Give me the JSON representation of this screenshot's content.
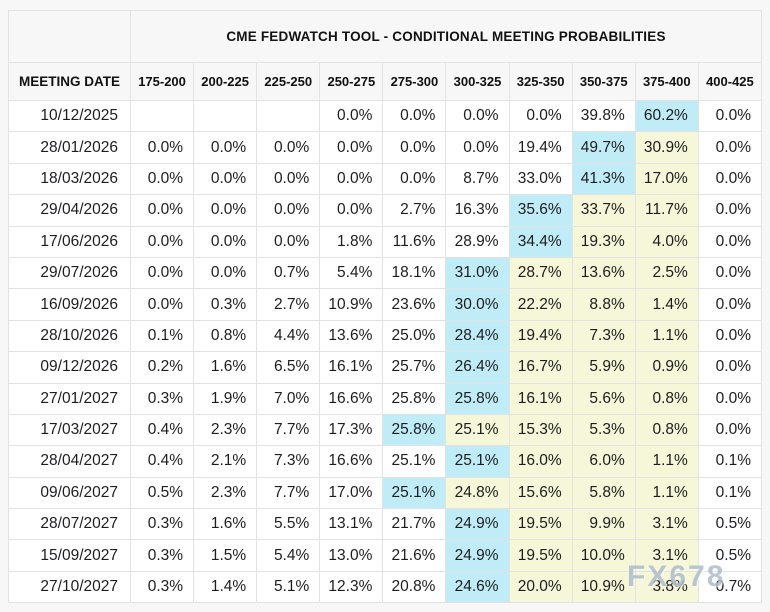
{
  "table": {
    "title": "CME FEDWATCH TOOL - CONDITIONAL MEETING PROBABILITIES",
    "row_header": "MEETING DATE",
    "columns": [
      "175-200",
      "200-225",
      "225-250",
      "250-275",
      "275-300",
      "300-325",
      "325-350",
      "350-375",
      "375-400",
      "400-425"
    ],
    "rows": [
      {
        "date": "10/12/2025",
        "values": [
          "",
          "",
          "",
          "0.0%",
          "0.0%",
          "0.0%",
          "0.0%",
          "39.8%",
          "60.2%",
          "0.0%"
        ],
        "highlights": [
          "",
          "",
          "",
          "",
          "",
          "",
          "",
          "",
          "cyan",
          ""
        ]
      },
      {
        "date": "28/01/2026",
        "values": [
          "0.0%",
          "0.0%",
          "0.0%",
          "0.0%",
          "0.0%",
          "0.0%",
          "19.4%",
          "49.7%",
          "30.9%",
          "0.0%"
        ],
        "highlights": [
          "",
          "",
          "",
          "",
          "",
          "",
          "",
          "cyan",
          "yellow",
          ""
        ]
      },
      {
        "date": "18/03/2026",
        "values": [
          "0.0%",
          "0.0%",
          "0.0%",
          "0.0%",
          "0.0%",
          "8.7%",
          "33.0%",
          "41.3%",
          "17.0%",
          "0.0%"
        ],
        "highlights": [
          "",
          "",
          "",
          "",
          "",
          "",
          "",
          "cyan",
          "yellow",
          ""
        ]
      },
      {
        "date": "29/04/2026",
        "values": [
          "0.0%",
          "0.0%",
          "0.0%",
          "0.0%",
          "2.7%",
          "16.3%",
          "35.6%",
          "33.7%",
          "11.7%",
          "0.0%"
        ],
        "highlights": [
          "",
          "",
          "",
          "",
          "",
          "",
          "cyan",
          "yellow",
          "yellow",
          ""
        ]
      },
      {
        "date": "17/06/2026",
        "values": [
          "0.0%",
          "0.0%",
          "0.0%",
          "1.8%",
          "11.6%",
          "28.9%",
          "34.4%",
          "19.3%",
          "4.0%",
          "0.0%"
        ],
        "highlights": [
          "",
          "",
          "",
          "",
          "",
          "",
          "cyan",
          "yellow",
          "yellow",
          ""
        ]
      },
      {
        "date": "29/07/2026",
        "values": [
          "0.0%",
          "0.0%",
          "0.7%",
          "5.4%",
          "18.1%",
          "31.0%",
          "28.7%",
          "13.6%",
          "2.5%",
          "0.0%"
        ],
        "highlights": [
          "",
          "",
          "",
          "",
          "",
          "cyan",
          "yellow",
          "yellow",
          "yellow",
          ""
        ]
      },
      {
        "date": "16/09/2026",
        "values": [
          "0.0%",
          "0.3%",
          "2.7%",
          "10.9%",
          "23.6%",
          "30.0%",
          "22.2%",
          "8.8%",
          "1.4%",
          "0.0%"
        ],
        "highlights": [
          "",
          "",
          "",
          "",
          "",
          "cyan",
          "yellow",
          "yellow",
          "yellow",
          ""
        ]
      },
      {
        "date": "28/10/2026",
        "values": [
          "0.1%",
          "0.8%",
          "4.4%",
          "13.6%",
          "25.0%",
          "28.4%",
          "19.4%",
          "7.3%",
          "1.1%",
          "0.0%"
        ],
        "highlights": [
          "",
          "",
          "",
          "",
          "",
          "cyan",
          "yellow",
          "yellow",
          "yellow",
          ""
        ]
      },
      {
        "date": "09/12/2026",
        "values": [
          "0.2%",
          "1.6%",
          "6.5%",
          "16.1%",
          "25.7%",
          "26.4%",
          "16.7%",
          "5.9%",
          "0.9%",
          "0.0%"
        ],
        "highlights": [
          "",
          "",
          "",
          "",
          "",
          "cyan",
          "yellow",
          "yellow",
          "yellow",
          ""
        ]
      },
      {
        "date": "27/01/2027",
        "values": [
          "0.3%",
          "1.9%",
          "7.0%",
          "16.6%",
          "25.8%",
          "25.8%",
          "16.1%",
          "5.6%",
          "0.8%",
          "0.0%"
        ],
        "highlights": [
          "",
          "",
          "",
          "",
          "",
          "cyan",
          "yellow",
          "yellow",
          "yellow",
          ""
        ]
      },
      {
        "date": "17/03/2027",
        "values": [
          "0.4%",
          "2.3%",
          "7.7%",
          "17.3%",
          "25.8%",
          "25.1%",
          "15.3%",
          "5.3%",
          "0.8%",
          "0.0%"
        ],
        "highlights": [
          "",
          "",
          "",
          "",
          "cyan",
          "yellow",
          "yellow",
          "yellow",
          "yellow",
          ""
        ]
      },
      {
        "date": "28/04/2027",
        "values": [
          "0.4%",
          "2.1%",
          "7.3%",
          "16.6%",
          "25.1%",
          "25.1%",
          "16.0%",
          "6.0%",
          "1.1%",
          "0.1%"
        ],
        "highlights": [
          "",
          "",
          "",
          "",
          "",
          "cyan",
          "yellow",
          "yellow",
          "yellow",
          ""
        ]
      },
      {
        "date": "09/06/2027",
        "values": [
          "0.5%",
          "2.3%",
          "7.7%",
          "17.0%",
          "25.1%",
          "24.8%",
          "15.6%",
          "5.8%",
          "1.1%",
          "0.1%"
        ],
        "highlights": [
          "",
          "",
          "",
          "",
          "cyan",
          "yellow",
          "yellow",
          "yellow",
          "yellow",
          ""
        ]
      },
      {
        "date": "28/07/2027",
        "values": [
          "0.3%",
          "1.6%",
          "5.5%",
          "13.1%",
          "21.7%",
          "24.9%",
          "19.5%",
          "9.9%",
          "3.1%",
          "0.5%"
        ],
        "highlights": [
          "",
          "",
          "",
          "",
          "",
          "cyan",
          "yellow",
          "yellow",
          "yellow",
          ""
        ]
      },
      {
        "date": "15/09/2027",
        "values": [
          "0.3%",
          "1.5%",
          "5.4%",
          "13.0%",
          "21.6%",
          "24.9%",
          "19.5%",
          "10.0%",
          "3.1%",
          "0.5%"
        ],
        "highlights": [
          "",
          "",
          "",
          "",
          "",
          "cyan",
          "yellow",
          "yellow",
          "yellow",
          ""
        ]
      },
      {
        "date": "27/10/2027",
        "values": [
          "0.3%",
          "1.4%",
          "5.1%",
          "12.3%",
          "20.8%",
          "24.6%",
          "20.0%",
          "10.9%",
          "3.8%",
          "0.7%"
        ],
        "highlights": [
          "",
          "",
          "",
          "",
          "",
          "cyan",
          "yellow",
          "yellow",
          "yellow",
          ""
        ]
      }
    ],
    "colors": {
      "cyan": "#bfecf7",
      "yellow": "#f6f6d8",
      "border": "#e2e2e2",
      "page_bg": "#f7f7f7",
      "text": "#1d1d1f"
    }
  },
  "watermark": {
    "text": "FX678",
    "color": "#aebdc9"
  },
  "chart_data": {
    "type": "table",
    "title": "CME FEDWATCH TOOL - CONDITIONAL MEETING PROBABILITIES",
    "row_label": "MEETING DATE",
    "columns_bps": [
      "175-200",
      "200-225",
      "225-250",
      "250-275",
      "275-300",
      "300-325",
      "325-350",
      "350-375",
      "375-400",
      "400-425"
    ],
    "rows": [
      {
        "date": "10/12/2025",
        "probabilities_pct": [
          null,
          null,
          null,
          0.0,
          0.0,
          0.0,
          0.0,
          39.8,
          60.2,
          0.0
        ]
      },
      {
        "date": "28/01/2026",
        "probabilities_pct": [
          0.0,
          0.0,
          0.0,
          0.0,
          0.0,
          0.0,
          19.4,
          49.7,
          30.9,
          0.0
        ]
      },
      {
        "date": "18/03/2026",
        "probabilities_pct": [
          0.0,
          0.0,
          0.0,
          0.0,
          0.0,
          8.7,
          33.0,
          41.3,
          17.0,
          0.0
        ]
      },
      {
        "date": "29/04/2026",
        "probabilities_pct": [
          0.0,
          0.0,
          0.0,
          0.0,
          2.7,
          16.3,
          35.6,
          33.7,
          11.7,
          0.0
        ]
      },
      {
        "date": "17/06/2026",
        "probabilities_pct": [
          0.0,
          0.0,
          0.0,
          1.8,
          11.6,
          28.9,
          34.4,
          19.3,
          4.0,
          0.0
        ]
      },
      {
        "date": "29/07/2026",
        "probabilities_pct": [
          0.0,
          0.0,
          0.7,
          5.4,
          18.1,
          31.0,
          28.7,
          13.6,
          2.5,
          0.0
        ]
      },
      {
        "date": "16/09/2026",
        "probabilities_pct": [
          0.0,
          0.3,
          2.7,
          10.9,
          23.6,
          30.0,
          22.2,
          8.8,
          1.4,
          0.0
        ]
      },
      {
        "date": "28/10/2026",
        "probabilities_pct": [
          0.1,
          0.8,
          4.4,
          13.6,
          25.0,
          28.4,
          19.4,
          7.3,
          1.1,
          0.0
        ]
      },
      {
        "date": "09/12/2026",
        "probabilities_pct": [
          0.2,
          1.6,
          6.5,
          16.1,
          25.7,
          26.4,
          16.7,
          5.9,
          0.9,
          0.0
        ]
      },
      {
        "date": "27/01/2027",
        "probabilities_pct": [
          0.3,
          1.9,
          7.0,
          16.6,
          25.8,
          25.8,
          16.1,
          5.6,
          0.8,
          0.0
        ]
      },
      {
        "date": "17/03/2027",
        "probabilities_pct": [
          0.4,
          2.3,
          7.7,
          17.3,
          25.8,
          25.1,
          15.3,
          5.3,
          0.8,
          0.0
        ]
      },
      {
        "date": "28/04/2027",
        "probabilities_pct": [
          0.4,
          2.1,
          7.3,
          16.6,
          25.1,
          25.1,
          16.0,
          6.0,
          1.1,
          0.1
        ]
      },
      {
        "date": "09/06/2027",
        "probabilities_pct": [
          0.5,
          2.3,
          7.7,
          17.0,
          25.1,
          24.8,
          15.6,
          5.8,
          1.1,
          0.1
        ]
      },
      {
        "date": "28/07/2027",
        "probabilities_pct": [
          0.3,
          1.6,
          5.5,
          13.1,
          21.7,
          24.9,
          19.5,
          9.9,
          3.1,
          0.5
        ]
      },
      {
        "date": "15/09/2027",
        "probabilities_pct": [
          0.3,
          1.5,
          5.4,
          13.0,
          21.6,
          24.9,
          19.5,
          10.0,
          3.1,
          0.5
        ]
      },
      {
        "date": "27/10/2027",
        "probabilities_pct": [
          0.3,
          1.4,
          5.1,
          12.3,
          20.8,
          24.6,
          20.0,
          10.9,
          3.8,
          0.7
        ]
      }
    ],
    "cell_highlight_colors": {
      "cyan": "#bfecf7",
      "yellow": "#f6f6d8"
    }
  }
}
